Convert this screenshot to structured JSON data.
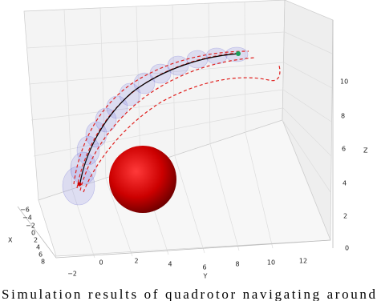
{
  "figure": {
    "x_axis": {
      "label": "X",
      "ticks": [
        "−6",
        "−4",
        "−2",
        "0",
        "2",
        "4",
        "6",
        "8"
      ]
    },
    "y_axis": {
      "label": "Y",
      "ticks": [
        "−2",
        "0",
        "2",
        "4",
        "6",
        "8",
        "10",
        "12"
      ]
    },
    "z_axis": {
      "label": "Z",
      "ticks": [
        "0",
        "2",
        "4",
        "6",
        "8",
        "10"
      ]
    },
    "caption": "Simulation results of quadrotor navigating around"
  }
}
